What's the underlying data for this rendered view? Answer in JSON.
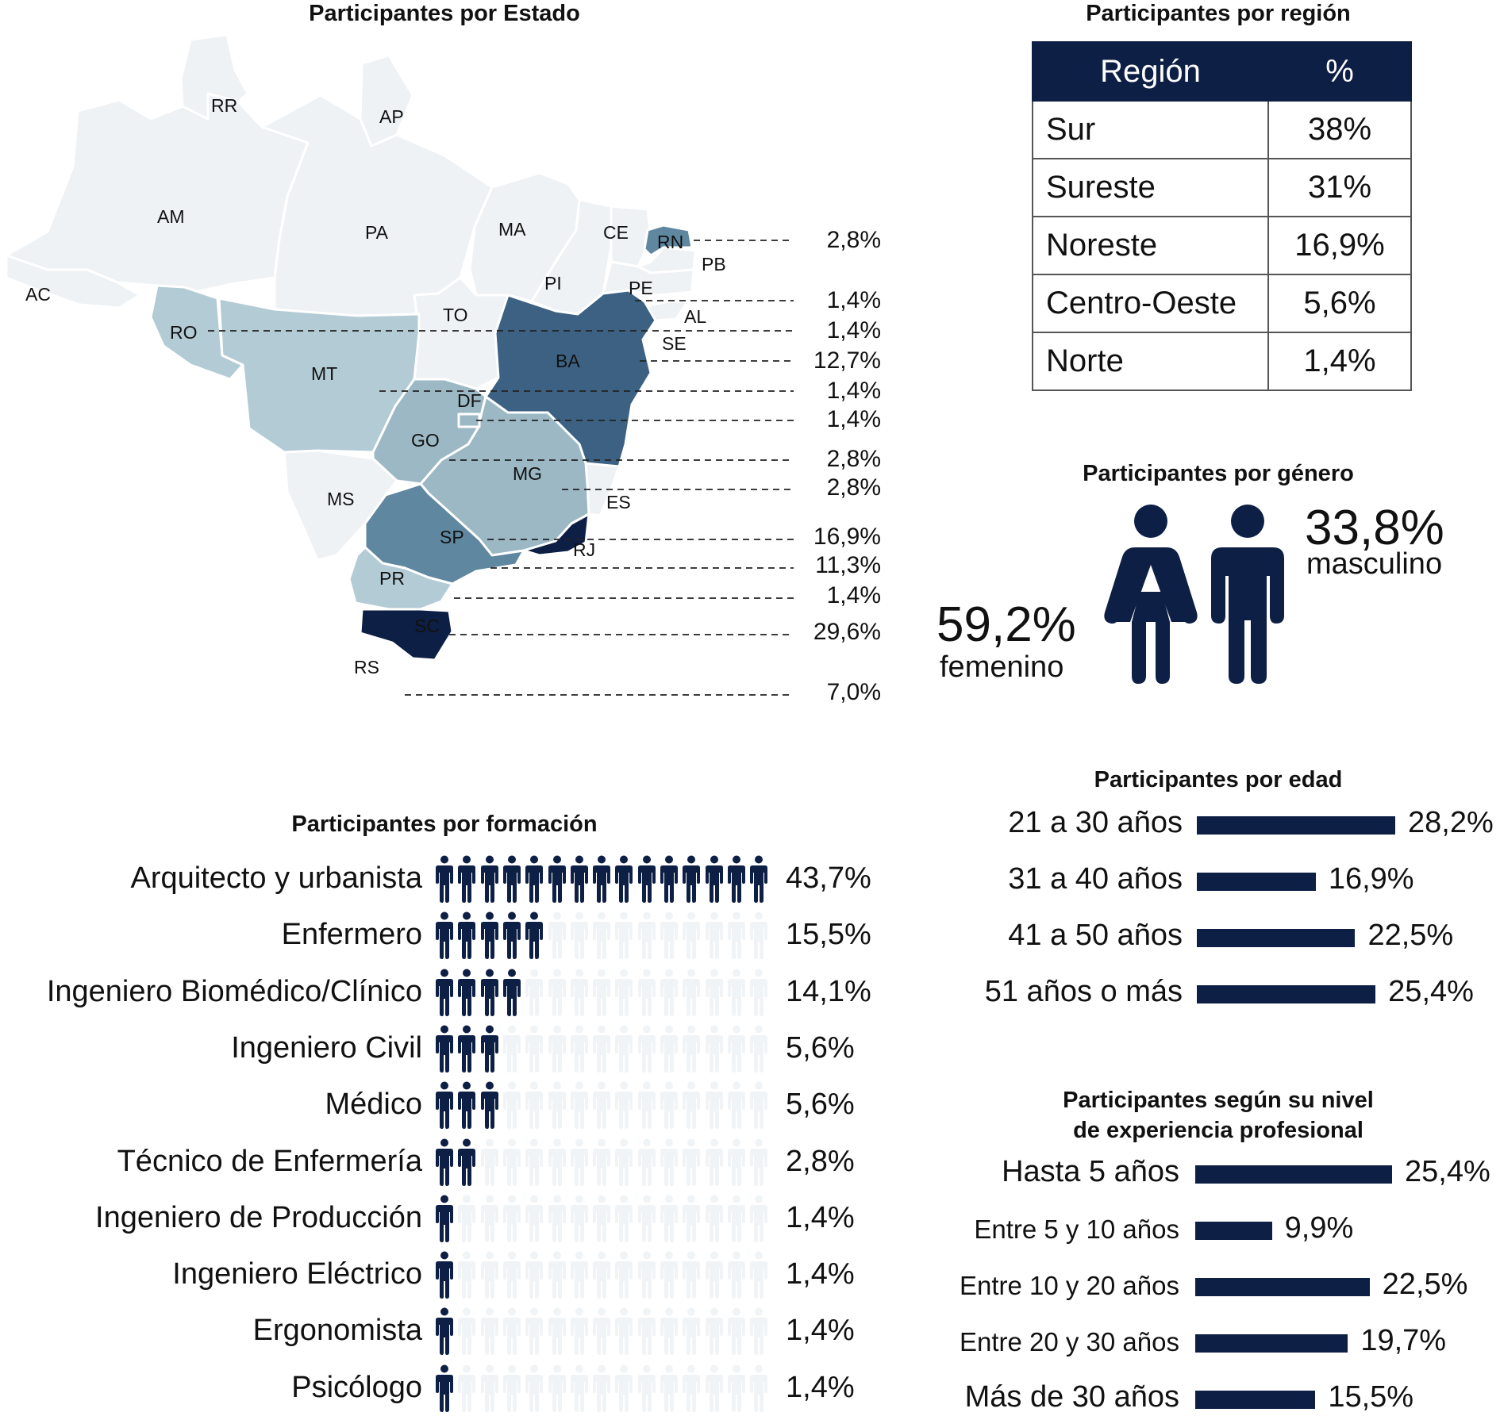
{
  "colors": {
    "navy": "#0e1f45",
    "shade_1": "#b3cbd5",
    "shade_2": "#9bb8c4",
    "shade_3": "#5f87a0",
    "shade_4": "#3c6182",
    "shade_5": "#0e1f45",
    "unselected": "#eef2f5",
    "icon_inactive": "#f1f4f6"
  },
  "map": {
    "title": "Participantes por Estado",
    "state_labels": {
      "RR": "RR",
      "AP": "AP",
      "AM": "AM",
      "PA": "PA",
      "MA": "MA",
      "CE": "CE",
      "RN": "RN",
      "PB": "PB",
      "PE": "PE",
      "PI": "PI",
      "AL": "AL",
      "SE": "SE",
      "AC": "AC",
      "RO": "RO",
      "TO": "TO",
      "BA": "BA",
      "MT": "MT",
      "DF": "DF",
      "GO": "GO",
      "MG": "MG",
      "ES": "ES",
      "MS": "MS",
      "SP": "SP",
      "RJ": "RJ",
      "PR": "PR",
      "SC": "SC",
      "RS": "RS"
    },
    "callout_values": [
      "2,8%",
      "1,4%",
      "1,4%",
      "12,7%",
      "1,4%",
      "1,4%",
      "2,8%",
      "2,8%",
      "16,9%",
      "11,3%",
      "1,4%",
      "29,6%",
      "7,0%"
    ]
  },
  "region": {
    "title": "Participantes por región",
    "headers": [
      "Región",
      "%"
    ],
    "rows": [
      [
        "Sur",
        "38%"
      ],
      [
        "Sureste",
        "31%"
      ],
      [
        "Noreste",
        "16,9%"
      ],
      [
        "Centro-Oeste",
        "5,6%"
      ],
      [
        "Norte",
        "1,4%"
      ]
    ]
  },
  "gender": {
    "title": "Participantes por género",
    "female_pct": "59,2%",
    "female_label": "femenino",
    "male_pct": "33,8%",
    "male_label": "masculino"
  },
  "chart_data": [
    {
      "type": "bar",
      "title": "Participantes por formación",
      "encoding": "icon count out of 15",
      "categories": [
        "Arquitecto y urbanista",
        "Enfermero",
        "Ingeniero Biomédico/Clínico",
        "Ingeniero Civil",
        "Médico",
        "Técnico de Enfermería",
        "Ingeniero de Producción",
        "Ingeniero Eléctrico",
        "Ergonomista",
        "Psicólogo"
      ],
      "values": [
        43.7,
        15.5,
        14.1,
        5.6,
        5.6,
        2.8,
        1.4,
        1.4,
        1.4,
        1.4
      ],
      "value_labels": [
        "43,7%",
        "15,5%",
        "14,1%",
        "5,6%",
        "5,6%",
        "2,8%",
        "1,4%",
        "1,4%",
        "1,4%",
        "1,4%"
      ],
      "icons_filled": [
        15,
        5,
        4,
        3,
        3,
        2,
        1,
        1,
        1,
        1
      ],
      "icons_total": 15
    },
    {
      "type": "bar",
      "orientation": "horizontal",
      "title": "Participantes por edad",
      "categories": [
        "21 a 30 años",
        "31 a 40 años",
        "41 a 50 años",
        "51 años o más"
      ],
      "values": [
        28.2,
        16.9,
        22.5,
        25.4
      ],
      "value_labels": [
        "28,2%",
        "16,9%",
        "22,5%",
        "25,4%"
      ],
      "xlim": [
        0,
        28.2
      ]
    },
    {
      "type": "bar",
      "orientation": "horizontal",
      "title": "Participantes según su nivel\nde experiencia profesional",
      "title_lines": [
        "Participantes según su nivel",
        "de experiencia profesional"
      ],
      "categories": [
        "Hasta 5 años",
        "Entre 5 y 10 años",
        "Entre 10 y 20 años",
        "Entre 20 y 30 años",
        "Más de 30 años"
      ],
      "values": [
        25.4,
        9.9,
        22.5,
        19.7,
        15.5
      ],
      "value_labels": [
        "25,4%",
        "9,9%",
        "22,5%",
        "19,7%",
        "15,5%"
      ],
      "xlim": [
        0,
        25.4
      ]
    }
  ]
}
